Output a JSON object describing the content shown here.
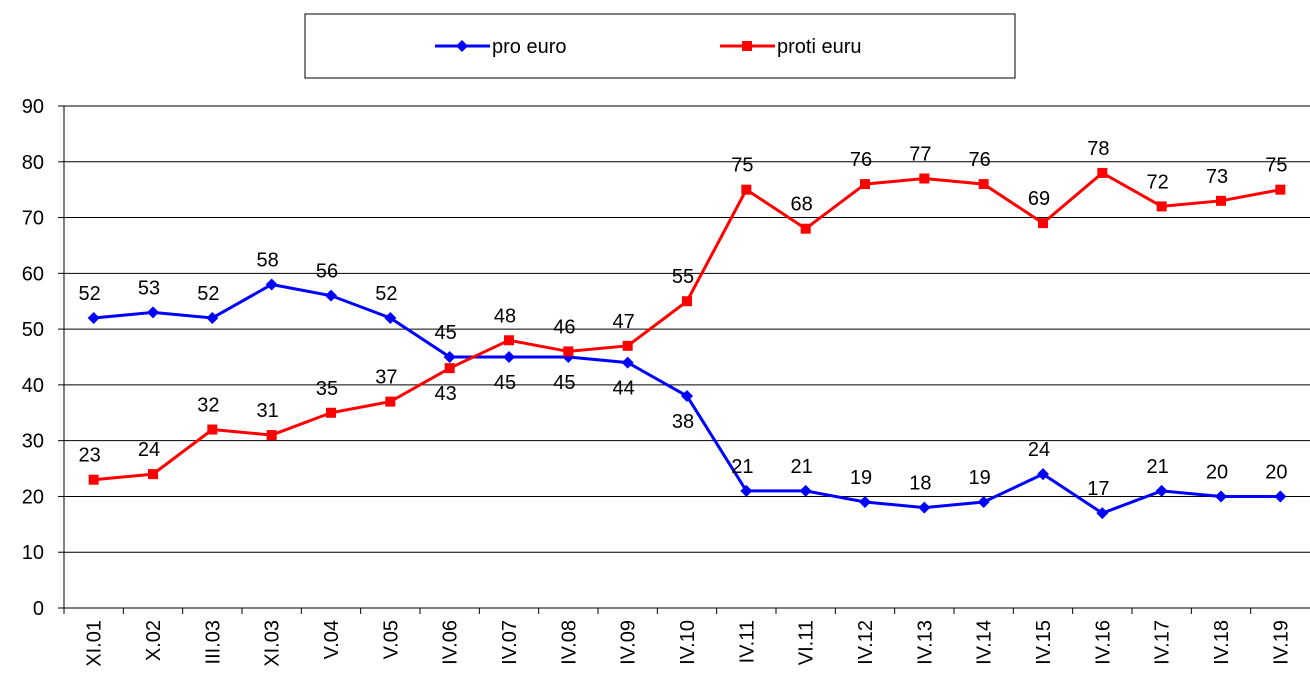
{
  "chart_data": {
    "type": "line",
    "categories": [
      "XI.01",
      "X.02",
      "III.03",
      "XI.03",
      "V.04",
      "V.05",
      "IV.06",
      "IV.07",
      "IV.08",
      "IV.09",
      "IV.10",
      "IV.11",
      "VI.11",
      "IV.12",
      "IV.13",
      "IV.14",
      "IV.15",
      "IV.16",
      "IV.17",
      "IV.18",
      "IV.19"
    ],
    "series": [
      {
        "name": "pro euro",
        "color": "#0000ff",
        "marker": "diamond",
        "values": [
          52,
          53,
          52,
          58,
          56,
          52,
          45,
          45,
          45,
          44,
          38,
          21,
          21,
          19,
          18,
          19,
          24,
          17,
          21,
          20,
          20
        ]
      },
      {
        "name": "proti euru",
        "color": "#ff0000",
        "marker": "square",
        "values": [
          23,
          24,
          32,
          31,
          35,
          37,
          43,
          48,
          46,
          47,
          55,
          75,
          68,
          76,
          77,
          76,
          69,
          78,
          72,
          73,
          75
        ]
      }
    ],
    "ylim": [
      0,
      90
    ],
    "yticks": [
      0,
      10,
      20,
      30,
      40,
      50,
      60,
      70,
      80,
      90
    ],
    "grid": true,
    "legend": "top"
  }
}
